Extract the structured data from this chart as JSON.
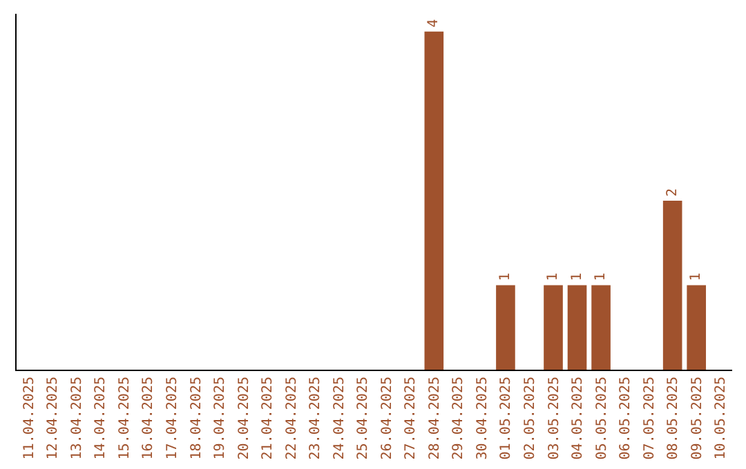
{
  "chart_data": {
    "type": "bar",
    "categories": [
      "11.04.2025",
      "12.04.2025",
      "13.04.2025",
      "14.04.2025",
      "15.04.2025",
      "16.04.2025",
      "17.04.2025",
      "18.04.2025",
      "19.04.2025",
      "20.04.2025",
      "21.04.2025",
      "22.04.2025",
      "23.04.2025",
      "24.04.2025",
      "25.04.2025",
      "26.04.2025",
      "27.04.2025",
      "28.04.2025",
      "29.04.2025",
      "30.04.2025",
      "01.05.2025",
      "02.05.2025",
      "03.05.2025",
      "04.05.2025",
      "05.05.2025",
      "06.05.2025",
      "07.05.2025",
      "08.05.2025",
      "09.05.2025",
      "10.05.2025"
    ],
    "values": [
      null,
      null,
      null,
      null,
      null,
      null,
      null,
      null,
      null,
      null,
      null,
      null,
      null,
      null,
      null,
      null,
      null,
      4,
      null,
      null,
      1,
      null,
      1,
      1,
      1,
      null,
      null,
      2,
      1,
      null
    ],
    "data_labels": true,
    "color": "#a0522d",
    "grid": false,
    "legend": false,
    "tick_labels": "x"
  }
}
